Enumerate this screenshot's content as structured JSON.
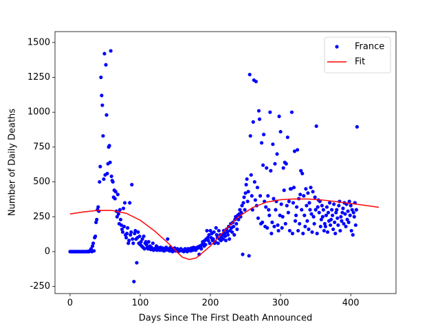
{
  "chart_data": {
    "type": "scatter",
    "x_label": "Days Since The First Death Announced",
    "y_label": "Number of Daily Deaths",
    "xlim": [
      -21.5,
      464.5
    ],
    "ylim": [
      -301,
      1578
    ],
    "xticks": [
      0,
      100,
      200,
      300,
      400
    ],
    "yticks": [
      -250,
      0,
      250,
      500,
      750,
      1000,
      1250,
      1500
    ],
    "legend": "upper right",
    "series": [
      {
        "name": "France",
        "type": "scatter",
        "color": "#0000ff",
        "x": [
          0,
          1,
          2,
          3,
          4,
          5,
          6,
          7,
          8,
          9,
          10,
          11,
          12,
          13,
          14,
          15,
          16,
          17,
          18,
          19,
          20,
          21,
          22,
          23,
          24,
          25,
          26,
          27,
          28,
          29,
          30,
          31,
          32,
          33,
          34,
          35,
          36,
          37,
          38,
          39,
          40,
          41,
          42,
          43,
          44,
          45,
          46,
          47,
          48,
          49,
          50,
          51,
          52,
          53,
          54,
          55,
          56,
          57,
          58,
          59,
          60,
          61,
          62,
          63,
          64,
          65,
          66,
          67,
          68,
          69,
          70,
          71,
          72,
          73,
          74,
          75,
          76,
          77,
          78,
          79,
          80,
          81,
          82,
          83,
          84,
          85,
          86,
          87,
          88,
          89,
          90,
          91,
          92,
          93,
          94,
          95,
          96,
          97,
          98,
          99,
          100,
          101,
          102,
          103,
          104,
          105,
          106,
          107,
          108,
          109,
          110,
          111,
          112,
          113,
          114,
          115,
          116,
          117,
          118,
          119,
          120,
          121,
          122,
          123,
          124,
          125,
          126,
          127,
          128,
          129,
          130,
          131,
          132,
          133,
          134,
          135,
          136,
          137,
          138,
          139,
          140,
          141,
          142,
          143,
          144,
          145,
          146,
          147,
          148,
          149,
          150,
          151,
          152,
          153,
          154,
          155,
          156,
          157,
          158,
          159,
          160,
          161,
          162,
          163,
          164,
          165,
          166,
          167,
          168,
          169,
          170,
          171,
          172,
          173,
          174,
          175,
          176,
          177,
          178,
          179,
          180,
          181,
          182,
          183,
          184,
          185,
          186,
          187,
          188,
          189,
          190,
          191,
          192,
          193,
          194,
          195,
          196,
          197,
          198,
          199,
          200,
          201,
          202,
          203,
          204,
          205,
          206,
          207,
          208,
          209,
          210,
          211,
          212,
          213,
          214,
          215,
          216,
          217,
          218,
          219,
          220,
          221,
          222,
          223,
          224,
          225,
          226,
          227,
          228,
          229,
          230,
          231,
          232,
          233,
          234,
          235,
          236,
          237,
          238,
          239,
          240,
          241,
          242,
          243,
          244,
          245,
          246,
          247,
          248,
          249,
          250,
          251,
          252,
          253,
          254,
          255,
          256,
          257,
          258,
          259,
          260,
          261,
          262,
          263,
          264,
          265,
          266,
          267,
          268,
          269,
          270,
          271,
          272,
          273,
          274,
          275,
          276,
          277,
          278,
          279,
          280,
          281,
          282,
          283,
          284,
          285,
          286,
          287,
          288,
          289,
          290,
          291,
          292,
          293,
          294,
          295,
          296,
          297,
          298,
          299,
          300,
          301,
          302,
          303,
          304,
          305,
          306,
          307,
          308,
          309,
          310,
          311,
          312,
          313,
          314,
          315,
          316,
          317,
          318,
          319,
          320,
          321,
          322,
          323,
          324,
          325,
          326,
          327,
          328,
          329,
          330,
          331,
          332,
          333,
          334,
          335,
          336,
          337,
          338,
          339,
          340,
          341,
          342,
          343,
          344,
          345,
          346,
          347,
          348,
          349,
          350,
          351,
          352,
          353,
          354,
          355,
          356,
          357,
          358,
          359,
          360,
          361,
          362,
          363,
          364,
          365,
          366,
          367,
          368,
          369,
          370,
          371,
          372,
          373,
          374,
          375,
          376,
          377,
          378,
          379,
          380,
          381,
          382,
          383,
          384,
          385,
          386,
          387,
          388,
          389,
          390,
          391,
          392,
          393,
          394,
          395,
          396,
          397,
          398,
          399,
          400,
          401,
          402,
          403,
          404,
          405,
          406,
          407,
          408,
          409
        ],
        "values": [
          0,
          0,
          0,
          0,
          0,
          0,
          0,
          0,
          0,
          0,
          0,
          0,
          0,
          0,
          0,
          0,
          0,
          0,
          0,
          0,
          0,
          0,
          0,
          0,
          0,
          0,
          2,
          0,
          5,
          10,
          20,
          0,
          40,
          60,
          5,
          100,
          110,
          210,
          230,
          300,
          320,
          290,
          500,
          610,
          1250,
          1120,
          1050,
          830,
          520,
          1420,
          550,
          1340,
          980,
          560,
          630,
          750,
          760,
          640,
          1440,
          540,
          510,
          500,
          390,
          440,
          380,
          430,
          290,
          250,
          410,
          270,
          200,
          300,
          230,
          190,
          160,
          140,
          310,
          180,
          350,
          120,
          100,
          130,
          170,
          60,
          80,
          350,
          120,
          140,
          480,
          90,
          60,
          -215,
          130,
          150,
          90,
          -80,
          100,
          140,
          60,
          110,
          50,
          70,
          40,
          90,
          30,
          110,
          20,
          60,
          70,
          50,
          30,
          20,
          70,
          25,
          40,
          15,
          30,
          20,
          60,
          10,
          20,
          15,
          25,
          40,
          10,
          30,
          20,
          15,
          10,
          30,
          20,
          10,
          25,
          15,
          5,
          20,
          10,
          30,
          15,
          90,
          10,
          20,
          5,
          30,
          15,
          10,
          0,
          20,
          10,
          25,
          5,
          15,
          10,
          20,
          0,
          10,
          5,
          15,
          20,
          10,
          5,
          10,
          0,
          15,
          20,
          5,
          10,
          0,
          20,
          15,
          10,
          20,
          5,
          25,
          15,
          10,
          30,
          20,
          25,
          10,
          20,
          30,
          25,
          35,
          -20,
          40,
          30,
          20,
          50,
          70,
          60,
          40,
          80,
          50,
          90,
          150,
          100,
          80,
          120,
          60,
          150,
          100,
          130,
          80,
          90,
          140,
          60,
          70,
          170,
          120,
          100,
          60,
          150,
          90,
          120,
          80,
          100,
          120,
          90,
          150,
          130,
          110,
          80,
          160,
          140,
          120,
          180,
          90,
          150,
          200,
          170,
          140,
          210,
          180,
          120,
          230,
          250,
          200,
          160,
          260,
          230,
          270,
          300,
          250,
          280,
          330,
          -20,
          350,
          390,
          300,
          420,
          480,
          520,
          360,
          430,
          -30,
          1270,
          830,
          550,
          400,
          300,
          930,
          1230,
          500,
          370,
          1220,
          330,
          460,
          240,
          1010,
          950,
          400,
          200,
          780,
          210,
          620,
          840,
          360,
          180,
          320,
          600,
          170,
          400,
          300,
          260,
          1000,
          580,
          130,
          210,
          770,
          380,
          180,
          630,
          300,
          360,
          700,
          190,
          150,
          970,
          260,
          860,
          340,
          170,
          250,
          600,
          440,
          640,
          200,
          630,
          330,
          820,
          280,
          360,
          150,
          450,
          450,
          1000,
          130,
          350,
          460,
          720,
          220,
          260,
          320,
          730,
          150,
          380,
          200,
          410,
          580,
          300,
          560,
          130,
          400,
          260,
          180,
          450,
          330,
          220,
          420,
          160,
          350,
          300,
          460,
          270,
          140,
          430,
          250,
          200,
          390,
          300,
          900,
          130,
          320,
          370,
          280,
          360,
          180,
          230,
          330,
          250,
          300,
          150,
          200,
          180,
          260,
          320,
          140,
          280,
          220,
          350,
          190,
          230,
          300,
          260,
          160,
          340,
          210,
          130,
          280,
          300,
          240,
          190,
          330,
          360,
          150,
          250,
          220,
          280,
          310,
          200,
          350,
          270,
          180,
          340,
          230,
          290,
          210,
          360,
          260,
          330,
          150,
          300,
          120,
          280,
          250,
          350,
          190,
          300,
          895
        ]
      },
      {
        "name": "Fit",
        "type": "line",
        "color": "#ff0000",
        "x": [
          0,
          20,
          40,
          60,
          80,
          100,
          120,
          140,
          160,
          170,
          180,
          200,
          220,
          240,
          260,
          280,
          300,
          320,
          340,
          360,
          380,
          400,
          420,
          440
        ],
        "values": [
          270,
          285,
          296,
          295,
          275,
          225,
          150,
          60,
          -40,
          -57,
          -45,
          40,
          150,
          250,
          315,
          355,
          372,
          378,
          377,
          370,
          358,
          345,
          332,
          318
        ]
      }
    ]
  }
}
